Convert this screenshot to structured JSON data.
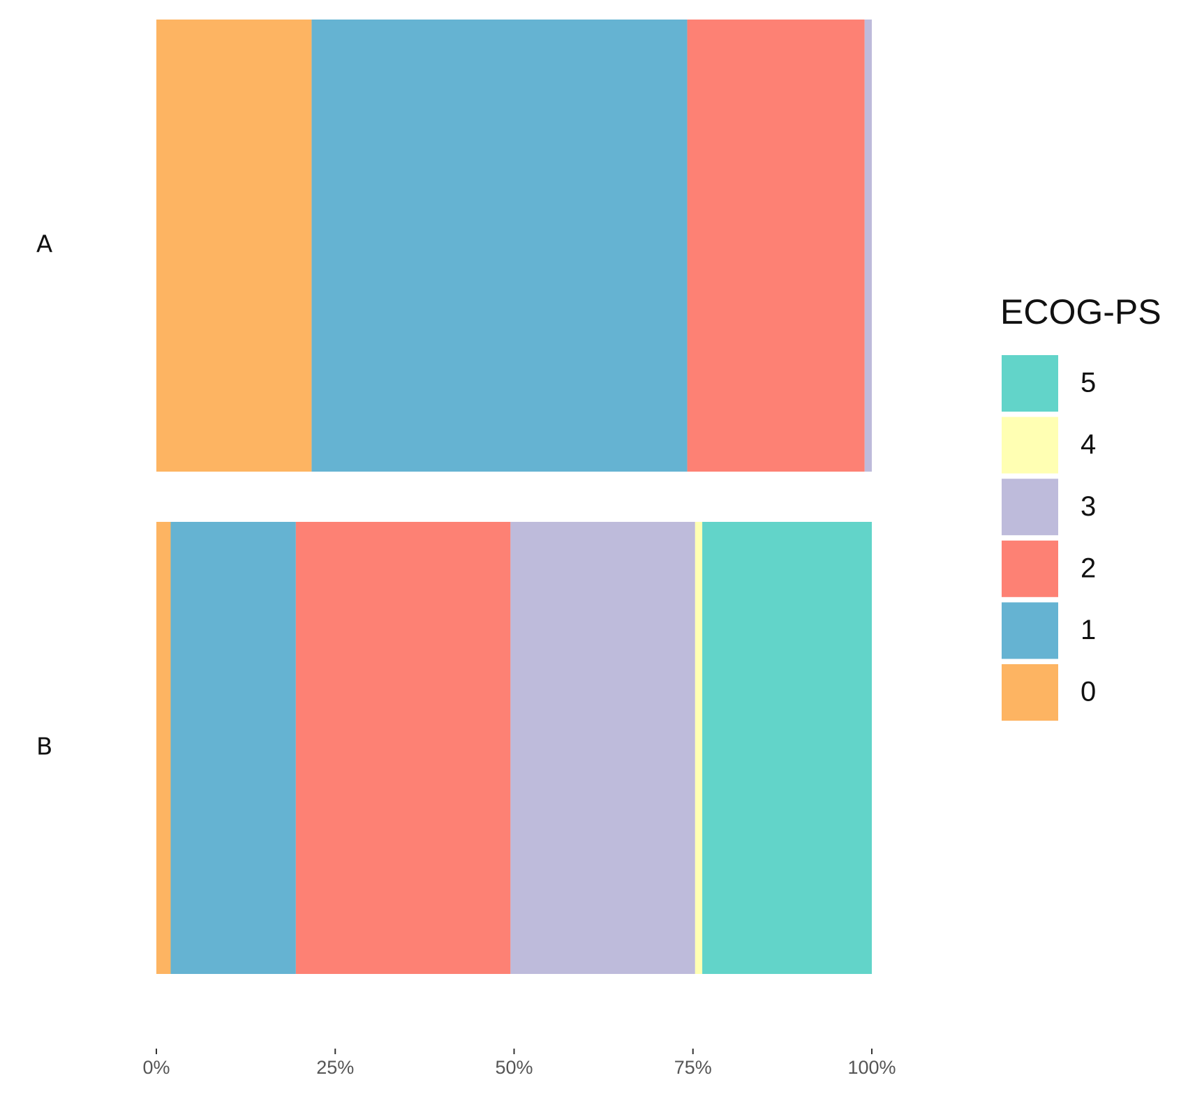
{
  "chart_data": {
    "type": "stacked-bar-horizontal",
    "categories": [
      "A",
      "B"
    ],
    "legend_title": "ECOG-PS",
    "series": [
      {
        "name": "0",
        "color": "#fdb462",
        "values": [
          21.7,
          2.0
        ]
      },
      {
        "name": "1",
        "color": "#65b3d2",
        "values": [
          52.5,
          17.5
        ]
      },
      {
        "name": "2",
        "color": "#fd8174",
        "values": [
          24.8,
          30.0
        ]
      },
      {
        "name": "3",
        "color": "#bebbdb",
        "values": [
          1.0,
          25.8
        ]
      },
      {
        "name": "4",
        "color": "#ffffb3",
        "values": [
          0,
          1.0
        ]
      },
      {
        "name": "5",
        "color": "#62d4c9",
        "values": [
          0,
          23.7
        ]
      }
    ],
    "xlim": [
      0,
      100
    ],
    "xticks": [
      {
        "value": 0,
        "label": "0%"
      },
      {
        "value": 25,
        "label": "25%"
      },
      {
        "value": 50,
        "label": "50%"
      },
      {
        "value": 75,
        "label": "75%"
      },
      {
        "value": 100,
        "label": "100%"
      }
    ],
    "legend_position": "right"
  }
}
